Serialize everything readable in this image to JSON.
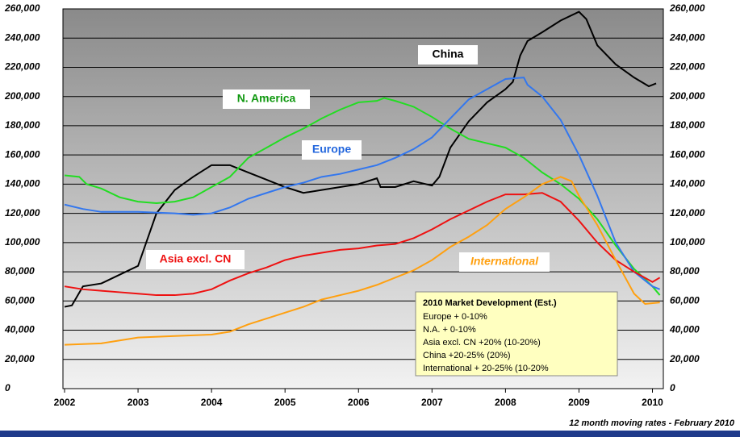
{
  "chart_data": {
    "type": "line",
    "xlim": [
      2002,
      2010.17
    ],
    "xticks": [
      2002,
      2003,
      2004,
      2005,
      2006,
      2007,
      2008,
      2009,
      2010
    ],
    "ylim": [
      0,
      260000
    ],
    "yticks": [
      {
        "value": 0,
        "label": "0"
      },
      {
        "value": 20000,
        "label": "20,000"
      },
      {
        "value": 40000,
        "label": "40,000"
      },
      {
        "value": 60000,
        "label": "60,000"
      },
      {
        "value": 80000,
        "label": "80,000"
      },
      {
        "value": 100000,
        "label": "100,000"
      },
      {
        "value": 120000,
        "label": "120,000"
      },
      {
        "value": 140000,
        "label": "140,000"
      },
      {
        "value": 160000,
        "label": "160,000"
      },
      {
        "value": 180000,
        "label": "180,000"
      },
      {
        "value": 200000,
        "label": "200,000"
      },
      {
        "value": 220000,
        "label": "220,000"
      },
      {
        "value": 240000,
        "label": "240,000"
      },
      {
        "value": 260000,
        "label": "260,000"
      }
    ],
    "grid": true,
    "series": [
      {
        "name": "China",
        "color": "#000000",
        "x": [
          2002,
          2002.1,
          2002.25,
          2002.5,
          2002.75,
          2003,
          2003.25,
          2003.5,
          2003.75,
          2004,
          2004.25,
          2004.5,
          2004.75,
          2005,
          2005.25,
          2005.5,
          2005.75,
          2006,
          2006.25,
          2006.3,
          2006.5,
          2006.75,
          2007,
          2007.1,
          2007.25,
          2007.5,
          2007.75,
          2008,
          2008.1,
          2008.2,
          2008.3,
          2008.5,
          2008.75,
          2009,
          2009.1,
          2009.25,
          2009.5,
          2009.75,
          2009.95,
          2010.05
        ],
        "values": [
          56000,
          57000,
          70000,
          72000,
          78000,
          84000,
          120000,
          136000,
          145000,
          153000,
          153000,
          148000,
          143000,
          138000,
          134000,
          136000,
          138000,
          140000,
          144000,
          138000,
          138000,
          142000,
          139000,
          145000,
          165000,
          183000,
          196000,
          205000,
          210000,
          228000,
          238000,
          244000,
          252000,
          258000,
          253000,
          235000,
          222000,
          213000,
          207000,
          209000
        ]
      },
      {
        "name": "N. America",
        "color": "#22dd22",
        "x": [
          2002,
          2002.2,
          2002.3,
          2002.5,
          2002.75,
          2003,
          2003.25,
          2003.5,
          2003.75,
          2004,
          2004.25,
          2004.5,
          2004.75,
          2005,
          2005.25,
          2005.5,
          2005.75,
          2006,
          2006.25,
          2006.35,
          2006.5,
          2006.75,
          2007,
          2007.25,
          2007.5,
          2007.75,
          2008,
          2008.25,
          2008.5,
          2008.75,
          2009,
          2009.25,
          2009.5,
          2009.75,
          2010,
          2010.1
        ],
        "values": [
          146000,
          145000,
          140000,
          137000,
          131000,
          128000,
          127000,
          128000,
          131000,
          138000,
          145000,
          158000,
          165000,
          172000,
          178000,
          185000,
          191000,
          196000,
          197000,
          199000,
          197000,
          193000,
          186000,
          178000,
          171000,
          168000,
          165000,
          158000,
          148000,
          140000,
          130000,
          116000,
          98000,
          82000,
          70000,
          64000
        ]
      },
      {
        "name": "Europe",
        "color": "#3377ee",
        "x": [
          2002,
          2002.25,
          2002.5,
          2003,
          2003.5,
          2003.75,
          2004,
          2004.25,
          2004.5,
          2004.75,
          2005,
          2005.25,
          2005.5,
          2005.75,
          2006,
          2006.25,
          2006.5,
          2006.75,
          2007,
          2007.25,
          2007.5,
          2007.75,
          2008,
          2008.25,
          2008.3,
          2008.5,
          2008.75,
          2009,
          2009.25,
          2009.5,
          2009.75,
          2010,
          2010.1
        ],
        "values": [
          126000,
          123000,
          121000,
          121000,
          120000,
          119000,
          120000,
          124000,
          130000,
          134000,
          138000,
          141000,
          145000,
          147000,
          150000,
          153000,
          158000,
          164000,
          172000,
          185000,
          198000,
          205000,
          212000,
          213000,
          208000,
          200000,
          184000,
          160000,
          132000,
          100000,
          80000,
          70000,
          68000
        ]
      },
      {
        "name": "Asia excl. CN",
        "color": "#ee1111",
        "x": [
          2002,
          2002.25,
          2002.5,
          2002.75,
          2003,
          2003.25,
          2003.5,
          2003.75,
          2004,
          2004.25,
          2004.5,
          2004.75,
          2005,
          2005.25,
          2005.5,
          2005.75,
          2006,
          2006.25,
          2006.5,
          2006.75,
          2007,
          2007.25,
          2007.5,
          2007.75,
          2008,
          2008.25,
          2008.5,
          2008.75,
          2009,
          2009.25,
          2009.5,
          2009.75,
          2010,
          2010.1
        ],
        "values": [
          70000,
          68000,
          67000,
          66000,
          65000,
          64000,
          64000,
          65000,
          68000,
          74000,
          79000,
          83000,
          88000,
          91000,
          93000,
          95000,
          96000,
          98000,
          99000,
          103000,
          109000,
          116000,
          122000,
          128000,
          133000,
          133000,
          134000,
          128000,
          115000,
          100000,
          88000,
          80000,
          73000,
          76000
        ]
      },
      {
        "name": "International",
        "color": "#ffa010",
        "x": [
          2002,
          2002.5,
          2002.75,
          2003,
          2003.5,
          2003.75,
          2004,
          2004.25,
          2004.5,
          2004.75,
          2005,
          2005.25,
          2005.5,
          2005.75,
          2006,
          2006.25,
          2006.5,
          2006.75,
          2007,
          2007.25,
          2007.5,
          2007.75,
          2008,
          2008.25,
          2008.5,
          2008.75,
          2008.9,
          2009,
          2009.25,
          2009.5,
          2009.75,
          2009.9,
          2010.1
        ],
        "values": [
          30000,
          31000,
          33000,
          35000,
          36000,
          36500,
          37000,
          39000,
          44000,
          48000,
          52000,
          56000,
          61000,
          64000,
          67000,
          71000,
          76000,
          81000,
          88000,
          97000,
          104000,
          112000,
          123000,
          131000,
          140000,
          145000,
          142000,
          132000,
          112000,
          88000,
          65000,
          58000,
          59000
        ]
      }
    ],
    "annotation_box": {
      "title": "2010 Market Development (Est.)",
      "lines": [
        "Europe + 0-10%",
        "N.A. + 0-10%",
        "Asia excl. CN +20% (10-20%)",
        "China +20-25% (20%)",
        "International + 20-25% (10-20%"
      ]
    },
    "footnote": "12 month moving rates  - February 2010"
  }
}
